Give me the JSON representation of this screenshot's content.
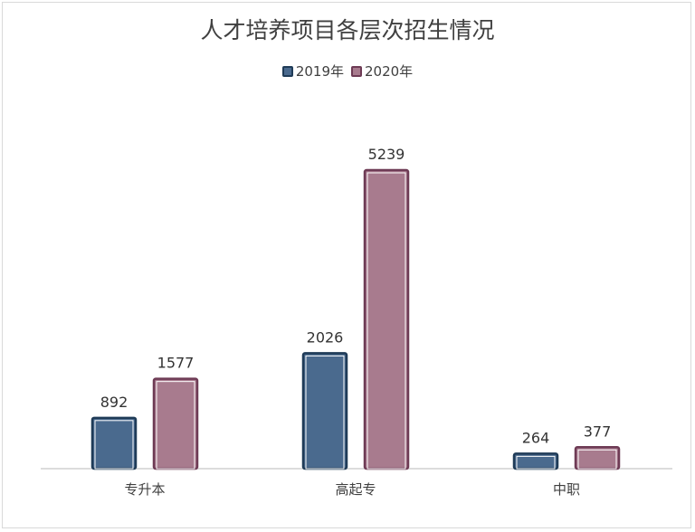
{
  "chart_data": {
    "type": "bar",
    "title": "人才培养项目各层次招生情况",
    "categories": [
      "专升本",
      "高起专",
      "中职"
    ],
    "series": [
      {
        "name": "2019年",
        "values": [
          892,
          2026,
          264
        ],
        "color": "#4a6a8e",
        "border": "#1f3b57"
      },
      {
        "name": "2020年",
        "values": [
          1577,
          5239,
          377
        ],
        "color": "#a87b8e",
        "border": "#6e3b55"
      }
    ],
    "ylim": [
      0,
      5700
    ],
    "xlabel": "",
    "ylabel": "",
    "legend": "top",
    "grid": false
  }
}
